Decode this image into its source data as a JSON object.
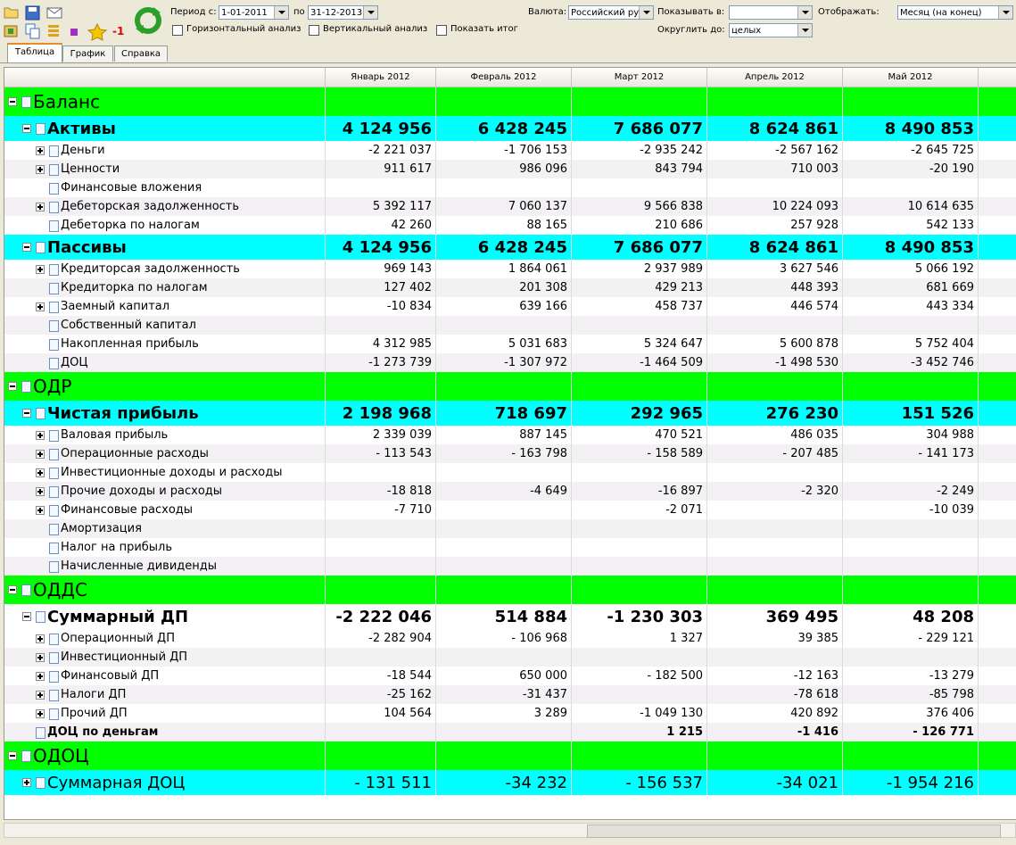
{
  "toolbar": {
    "badge": "-1",
    "period_from_label": "Период с:",
    "period_from": "1-01-2011",
    "period_to_label": "по",
    "period_to": "31-12-2013",
    "horizontal": "Горизонтальный анализ",
    "vertical": "Вертикальный анализ",
    "show_total": "Показать итог",
    "currency_label": "Валюта:",
    "currency": "Российский ру",
    "show_in_label": "Показывать в:",
    "display_label": "Отображать:",
    "display": "Месяц (на конец)",
    "round_label": "Округлить до:",
    "round": "целых"
  },
  "tabs": [
    "Таблица",
    "График",
    "Справка"
  ],
  "table": {
    "columns": [
      "Январь 2012",
      "Февраль 2012",
      "Март 2012",
      "Апрель 2012",
      "Май 2012"
    ],
    "rows": [
      {
        "label": "Баланс",
        "level": 0,
        "expanded": true,
        "color": "#00ff00"
      },
      {
        "label": "Активы",
        "level": 1,
        "expanded": true,
        "color": "#00ffff",
        "large": true,
        "bold": true,
        "values": [
          "4 124 956",
          "6 428 245",
          "7 686 077",
          "8 624 861",
          "8 490 853"
        ]
      },
      {
        "label": "Деньги",
        "level": 2,
        "expanded": false,
        "values": [
          "-2 221 037",
          "-1 706 153",
          "-2 935 242",
          "-2 567 162",
          "-2 645 725"
        ]
      },
      {
        "label": "Ценности",
        "level": 2,
        "expanded": false,
        "values": [
          "911 617",
          "986 096",
          "843 794",
          "710 003",
          "-20 190"
        ]
      },
      {
        "label": "Финансовые вложения",
        "level": 2,
        "values": [
          null,
          null,
          null,
          null,
          null
        ]
      },
      {
        "label": "Дебеторская задолженность",
        "level": 2,
        "expanded": false,
        "values": [
          "5 392 117",
          "7 060 137",
          "9 566 838",
          "10 224 093",
          "10 614 635"
        ]
      },
      {
        "label": "Дебеторка по налогам",
        "level": 2,
        "values": [
          "42 260",
          "88 165",
          "210 686",
          "257 928",
          "542 133"
        ]
      },
      {
        "label": "Пассивы",
        "level": 1,
        "expanded": true,
        "color": "#00ffff",
        "large": true,
        "bold": true,
        "values": [
          "4 124 956",
          "6 428 245",
          "7 686 077",
          "8 624 861",
          "8 490 853"
        ]
      },
      {
        "label": "Кредиторсая задолженность",
        "level": 2,
        "expanded": false,
        "values": [
          "969 143",
          "1 864 061",
          "2 937 989",
          "3 627 546",
          "5 066 192"
        ]
      },
      {
        "label": "Кредиторка по налогам",
        "level": 2,
        "values": [
          "127 402",
          "201 308",
          "429 213",
          "448 393",
          "681 669"
        ]
      },
      {
        "label": "Заемный капитал",
        "level": 2,
        "expanded": false,
        "values": [
          "-10 834",
          "639 166",
          "458 737",
          "446 574",
          "443 334"
        ]
      },
      {
        "label": "Собственный капитал",
        "level": 2,
        "values": [
          null,
          null,
          null,
          null,
          null
        ]
      },
      {
        "label": "Накопленная прибыль",
        "level": 2,
        "values": [
          "4 312 985",
          "5 031 683",
          "5 324 647",
          "5 600 878",
          "5 752 404"
        ]
      },
      {
        "label": "ДОЦ",
        "level": 2,
        "values": [
          "-1 273 739",
          "-1 307 972",
          "-1 464 509",
          "-1 498 530",
          "-3 452 746"
        ]
      },
      {
        "label": "ОДР",
        "level": 0,
        "expanded": true,
        "color": "#00ff00"
      },
      {
        "label": "Чистая прибыль",
        "level": 1,
        "expanded": true,
        "color": "#00ffff",
        "large": true,
        "bold": true,
        "values": [
          "2 198 968",
          "718 697",
          "292 965",
          "276 230",
          "151 526"
        ]
      },
      {
        "label": "Валовая прибыль",
        "level": 2,
        "expanded": false,
        "values": [
          "2 339 039",
          "887 145",
          "470 521",
          "486 035",
          "304 988"
        ]
      },
      {
        "label": "Операционные расходы",
        "level": 2,
        "expanded": false,
        "values": [
          "- 113 543",
          "- 163 798",
          "- 158 589",
          "- 207 485",
          "- 141 173"
        ]
      },
      {
        "label": "Инвестиционные доходы и расходы",
        "level": 2,
        "expanded": false,
        "values": [
          null,
          null,
          null,
          null,
          null
        ]
      },
      {
        "label": "Прочие доходы и расходы",
        "level": 2,
        "expanded": false,
        "values": [
          "-18 818",
          "-4 649",
          "-16 897",
          "-2 320",
          "-2 249"
        ]
      },
      {
        "label": "Финансовые расходы",
        "level": 2,
        "expanded": false,
        "values": [
          "-7 710",
          null,
          "-2 071",
          null,
          "-10 039"
        ]
      },
      {
        "label": "Амортизация",
        "level": 2,
        "values": [
          null,
          null,
          null,
          null,
          null
        ]
      },
      {
        "label": "Налог на прибыль",
        "level": 2,
        "values": [
          null,
          null,
          null,
          null,
          null
        ]
      },
      {
        "label": "Начисленные дивиденды",
        "level": 2,
        "values": [
          null,
          null,
          null,
          null,
          null
        ]
      },
      {
        "label": "ОДДС",
        "level": 0,
        "expanded": true,
        "color": "#00ff00"
      },
      {
        "label": "Суммарный ДП",
        "level": 1,
        "expanded": true,
        "color": "#ffffff",
        "large": true,
        "bold": true,
        "values": [
          "-2 222 046",
          "514 884",
          "-1 230 303",
          "369 495",
          "48 208"
        ]
      },
      {
        "label": "Операционный ДП",
        "level": 2,
        "expanded": false,
        "values": [
          "-2 282 904",
          "- 106 968",
          "1 327",
          "39 385",
          "- 229 121"
        ]
      },
      {
        "label": "Инвестиционный ДП",
        "level": 2,
        "expanded": false,
        "values": [
          null,
          null,
          null,
          null,
          null
        ]
      },
      {
        "label": "Финансовый ДП",
        "level": 2,
        "expanded": false,
        "values": [
          "-18 544",
          "650 000",
          "- 182 500",
          "-12 163",
          "-13 279"
        ]
      },
      {
        "label": "Налоги ДП",
        "level": 2,
        "expanded": false,
        "values": [
          "-25 162",
          "-31 437",
          null,
          "-78 618",
          "-85 798"
        ]
      },
      {
        "label": "Прочий ДП",
        "level": 2,
        "expanded": false,
        "values": [
          "104 564",
          "3 289",
          "-1 049 130",
          "420 892",
          "376 406"
        ]
      },
      {
        "label": "ДОЦ по деньгам",
        "level": 1,
        "bold": true,
        "values": [
          null,
          null,
          "1 215",
          "-1 416",
          "- 126 771"
        ]
      },
      {
        "label": "ОДОЦ",
        "level": 0,
        "expanded": true,
        "color": "#00ff00"
      },
      {
        "label": "Суммарная ДОЦ",
        "level": 1,
        "expanded": false,
        "color": "#00ffff",
        "large": true,
        "values": [
          "- 131 511",
          "-34 232",
          "- 156 537",
          "-34 021",
          "-1 954 216"
        ]
      }
    ]
  }
}
